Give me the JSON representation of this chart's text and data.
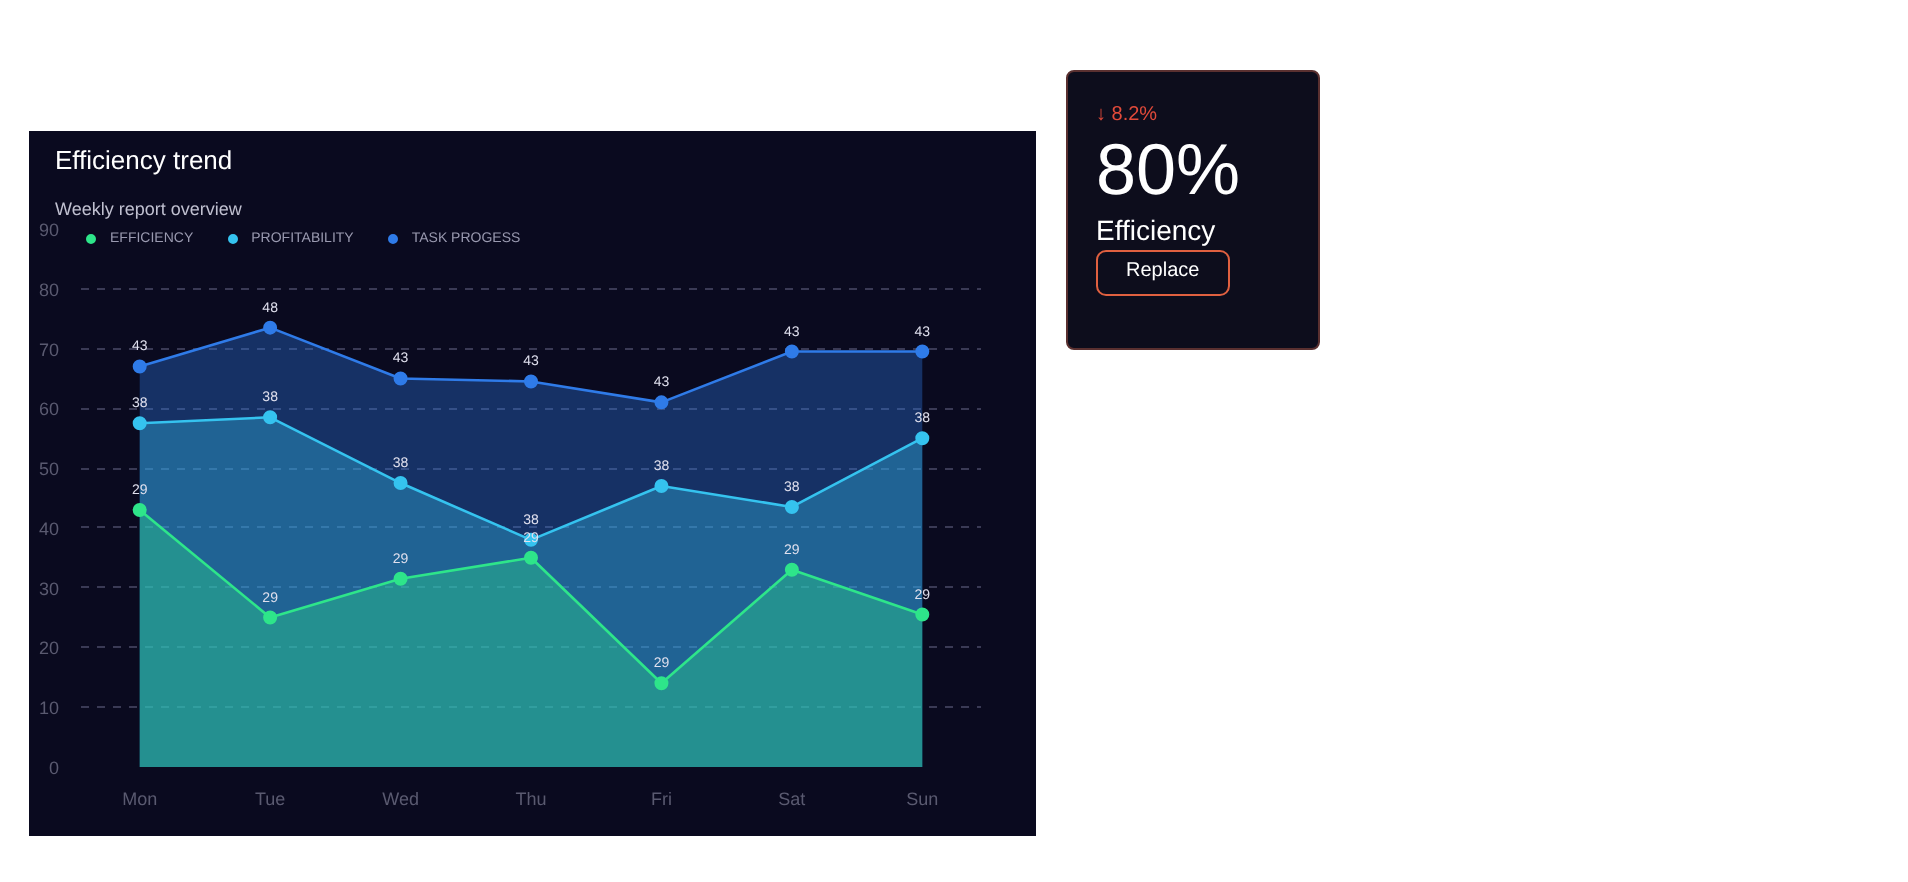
{
  "chart_data": {
    "type": "area",
    "title": "Efficiency trend",
    "subtitle": "Weekly report overview",
    "categories": [
      "Mon",
      "Tue",
      "Wed",
      "Thu",
      "Fri",
      "Sat",
      "Sun"
    ],
    "series": [
      {
        "name": "TASK PROGESS",
        "color": "#2f7be8",
        "values": [
          67,
          73.5,
          65,
          64.5,
          61,
          69.5,
          69.5
        ]
      },
      {
        "name": "PROFITABILITY",
        "color": "#35c3ef",
        "values": [
          57.5,
          58.5,
          47.5,
          38,
          47,
          43.5,
          55
        ]
      },
      {
        "name": "EFFICIENCY",
        "color": "#2ee58a",
        "values": [
          43,
          25,
          31.5,
          35,
          14,
          33,
          25.5
        ]
      }
    ],
    "ylim": [
      0,
      90
    ],
    "yticks": [
      0,
      10,
      20,
      30,
      40,
      50,
      60,
      70,
      80,
      90
    ],
    "grid": "y",
    "legend": "top left",
    "marker": "circle",
    "annotations": [
      "↓ 8.2%",
      "80%",
      "Efficiency",
      "Replace",
      {
        "text": "43",
        "x": "Mon",
        "y": 67
      },
      {
        "text": "48",
        "x": "Tue",
        "y": 73.5
      },
      {
        "text": "43",
        "x": "Wed",
        "y": 65
      },
      {
        "text": "43",
        "x": "Thu",
        "y": 64.5
      },
      {
        "text": "43",
        "x": "Fri",
        "y": 61
      },
      {
        "text": "43",
        "x": "Sat",
        "y": 69.5
      },
      {
        "text": "43",
        "x": "Sun",
        "y": 69.5
      },
      {
        "text": "38",
        "x": "Mon",
        "y": 57.5
      },
      {
        "text": "38",
        "x": "Tue",
        "y": 58.5
      },
      {
        "text": "38",
        "x": "Wed",
        "y": 47.5
      },
      {
        "text": "38",
        "x": "Thu",
        "y": 38
      },
      {
        "text": "38",
        "x": "Fri",
        "y": 47
      },
      {
        "text": "38",
        "x": "Sat",
        "y": 43.5
      },
      {
        "text": "38",
        "x": "Sun",
        "y": 55
      },
      {
        "text": "29",
        "x": "Mon",
        "y": 43
      },
      {
        "text": "29",
        "x": "Tue",
        "y": 25
      },
      {
        "text": "29",
        "x": "Wed",
        "y": 31.5
      },
      {
        "text": "29",
        "x": "Thu",
        "y": 35
      },
      {
        "text": "29",
        "x": "Fri",
        "y": 14
      },
      {
        "text": "29",
        "x": "Sat",
        "y": 33
      },
      {
        "text": "29",
        "x": "Sun",
        "y": 25.5
      }
    ]
  }
}
